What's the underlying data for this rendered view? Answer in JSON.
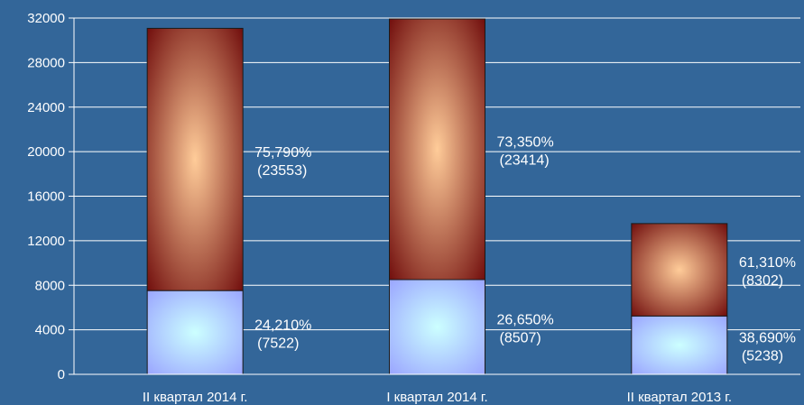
{
  "chart_data": {
    "type": "bar",
    "stacked": true,
    "categories": [
      "II квартал 2014 г.",
      "I квартал 2014 г.",
      "II квартал 2013 г."
    ],
    "series": [
      {
        "values": [
          7522,
          8507,
          5238
        ],
        "labels": [
          "24,210%",
          "26,650%",
          "38,690%"
        ],
        "value_labels": [
          "(7522)",
          "(8507)",
          "(5238)"
        ],
        "color": "#99a3ff",
        "center_color": "#ccffff"
      },
      {
        "values": [
          23553,
          23414,
          8302
        ],
        "labels": [
          "75,790%",
          "73,350%",
          "61,310%"
        ],
        "value_labels": [
          "(23553)",
          "(23414)",
          "(8302)"
        ],
        "color": "#6e0a0a",
        "center_color": "#ffcc99"
      }
    ],
    "y_ticks": [
      "0",
      "4000",
      "8000",
      "12000",
      "16000",
      "20000",
      "24000",
      "28000",
      "32000"
    ],
    "ylim": [
      0,
      32000
    ],
    "grid": true,
    "background": "#336699",
    "text_color": "#ffffff"
  }
}
